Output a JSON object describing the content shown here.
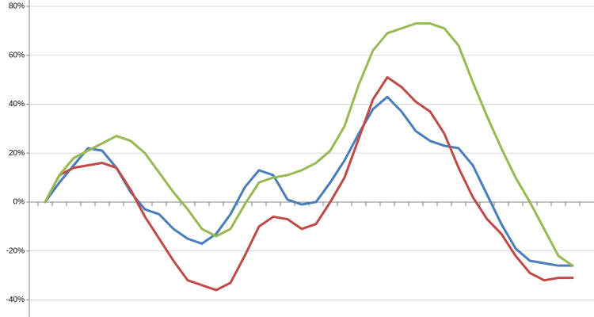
{
  "chart_data": {
    "type": "line",
    "categories": [
      null,
      null,
      null,
      null,
      null,
      null,
      null,
      null,
      null,
      null,
      null,
      null,
      null,
      null,
      null,
      null,
      null,
      null,
      null,
      null,
      null,
      null,
      null,
      null,
      null,
      null,
      null,
      null,
      null,
      null,
      null,
      null,
      null,
      null,
      null,
      null,
      null,
      null
    ],
    "series": [
      {
        "color": "#4a7ebb",
        "values": [
          0,
          8,
          15,
          22,
          21,
          14,
          4,
          -3,
          -5,
          -11,
          -15,
          -17,
          -13,
          -5,
          6,
          13,
          11,
          1,
          -1,
          0,
          8,
          17,
          28,
          38,
          43,
          37,
          29,
          25,
          23,
          22,
          15,
          3,
          -9,
          -19,
          -24,
          -25,
          -26,
          -26
        ]
      },
      {
        "color": "#be4b48",
        "values": [
          0,
          11,
          14,
          15,
          16,
          14,
          5,
          -6,
          -15,
          -24,
          -32,
          -34,
          -36,
          -33,
          -22,
          -10,
          -6,
          -7,
          -11,
          -9,
          0,
          10,
          26,
          42,
          51,
          47,
          41,
          37,
          28,
          14,
          2,
          -7,
          -13,
          -22,
          -29,
          -32,
          -31,
          -31
        ]
      },
      {
        "color": "#98b954",
        "values": [
          0,
          11,
          18,
          21,
          24,
          27,
          25,
          20,
          12,
          4,
          -3,
          -11,
          -14,
          -11,
          -1,
          8,
          10,
          11,
          13,
          16,
          21,
          31,
          48,
          62,
          69,
          71,
          73,
          73,
          71,
          64,
          49,
          35,
          22,
          10,
          0,
          -11,
          -22,
          -26
        ]
      }
    ],
    "ylim": [
      -47,
      82.6
    ],
    "yticks": [
      {
        "value": -40,
        "label": "-40%"
      },
      {
        "value": -20,
        "label": "-20%"
      },
      {
        "value": 0,
        "label": "0%"
      },
      {
        "value": 20,
        "label": "20%"
      },
      {
        "value": 40,
        "label": "40%"
      },
      {
        "value": 60,
        "label": "60%"
      },
      {
        "value": 80,
        "label": "80%"
      }
    ],
    "grid": true
  }
}
